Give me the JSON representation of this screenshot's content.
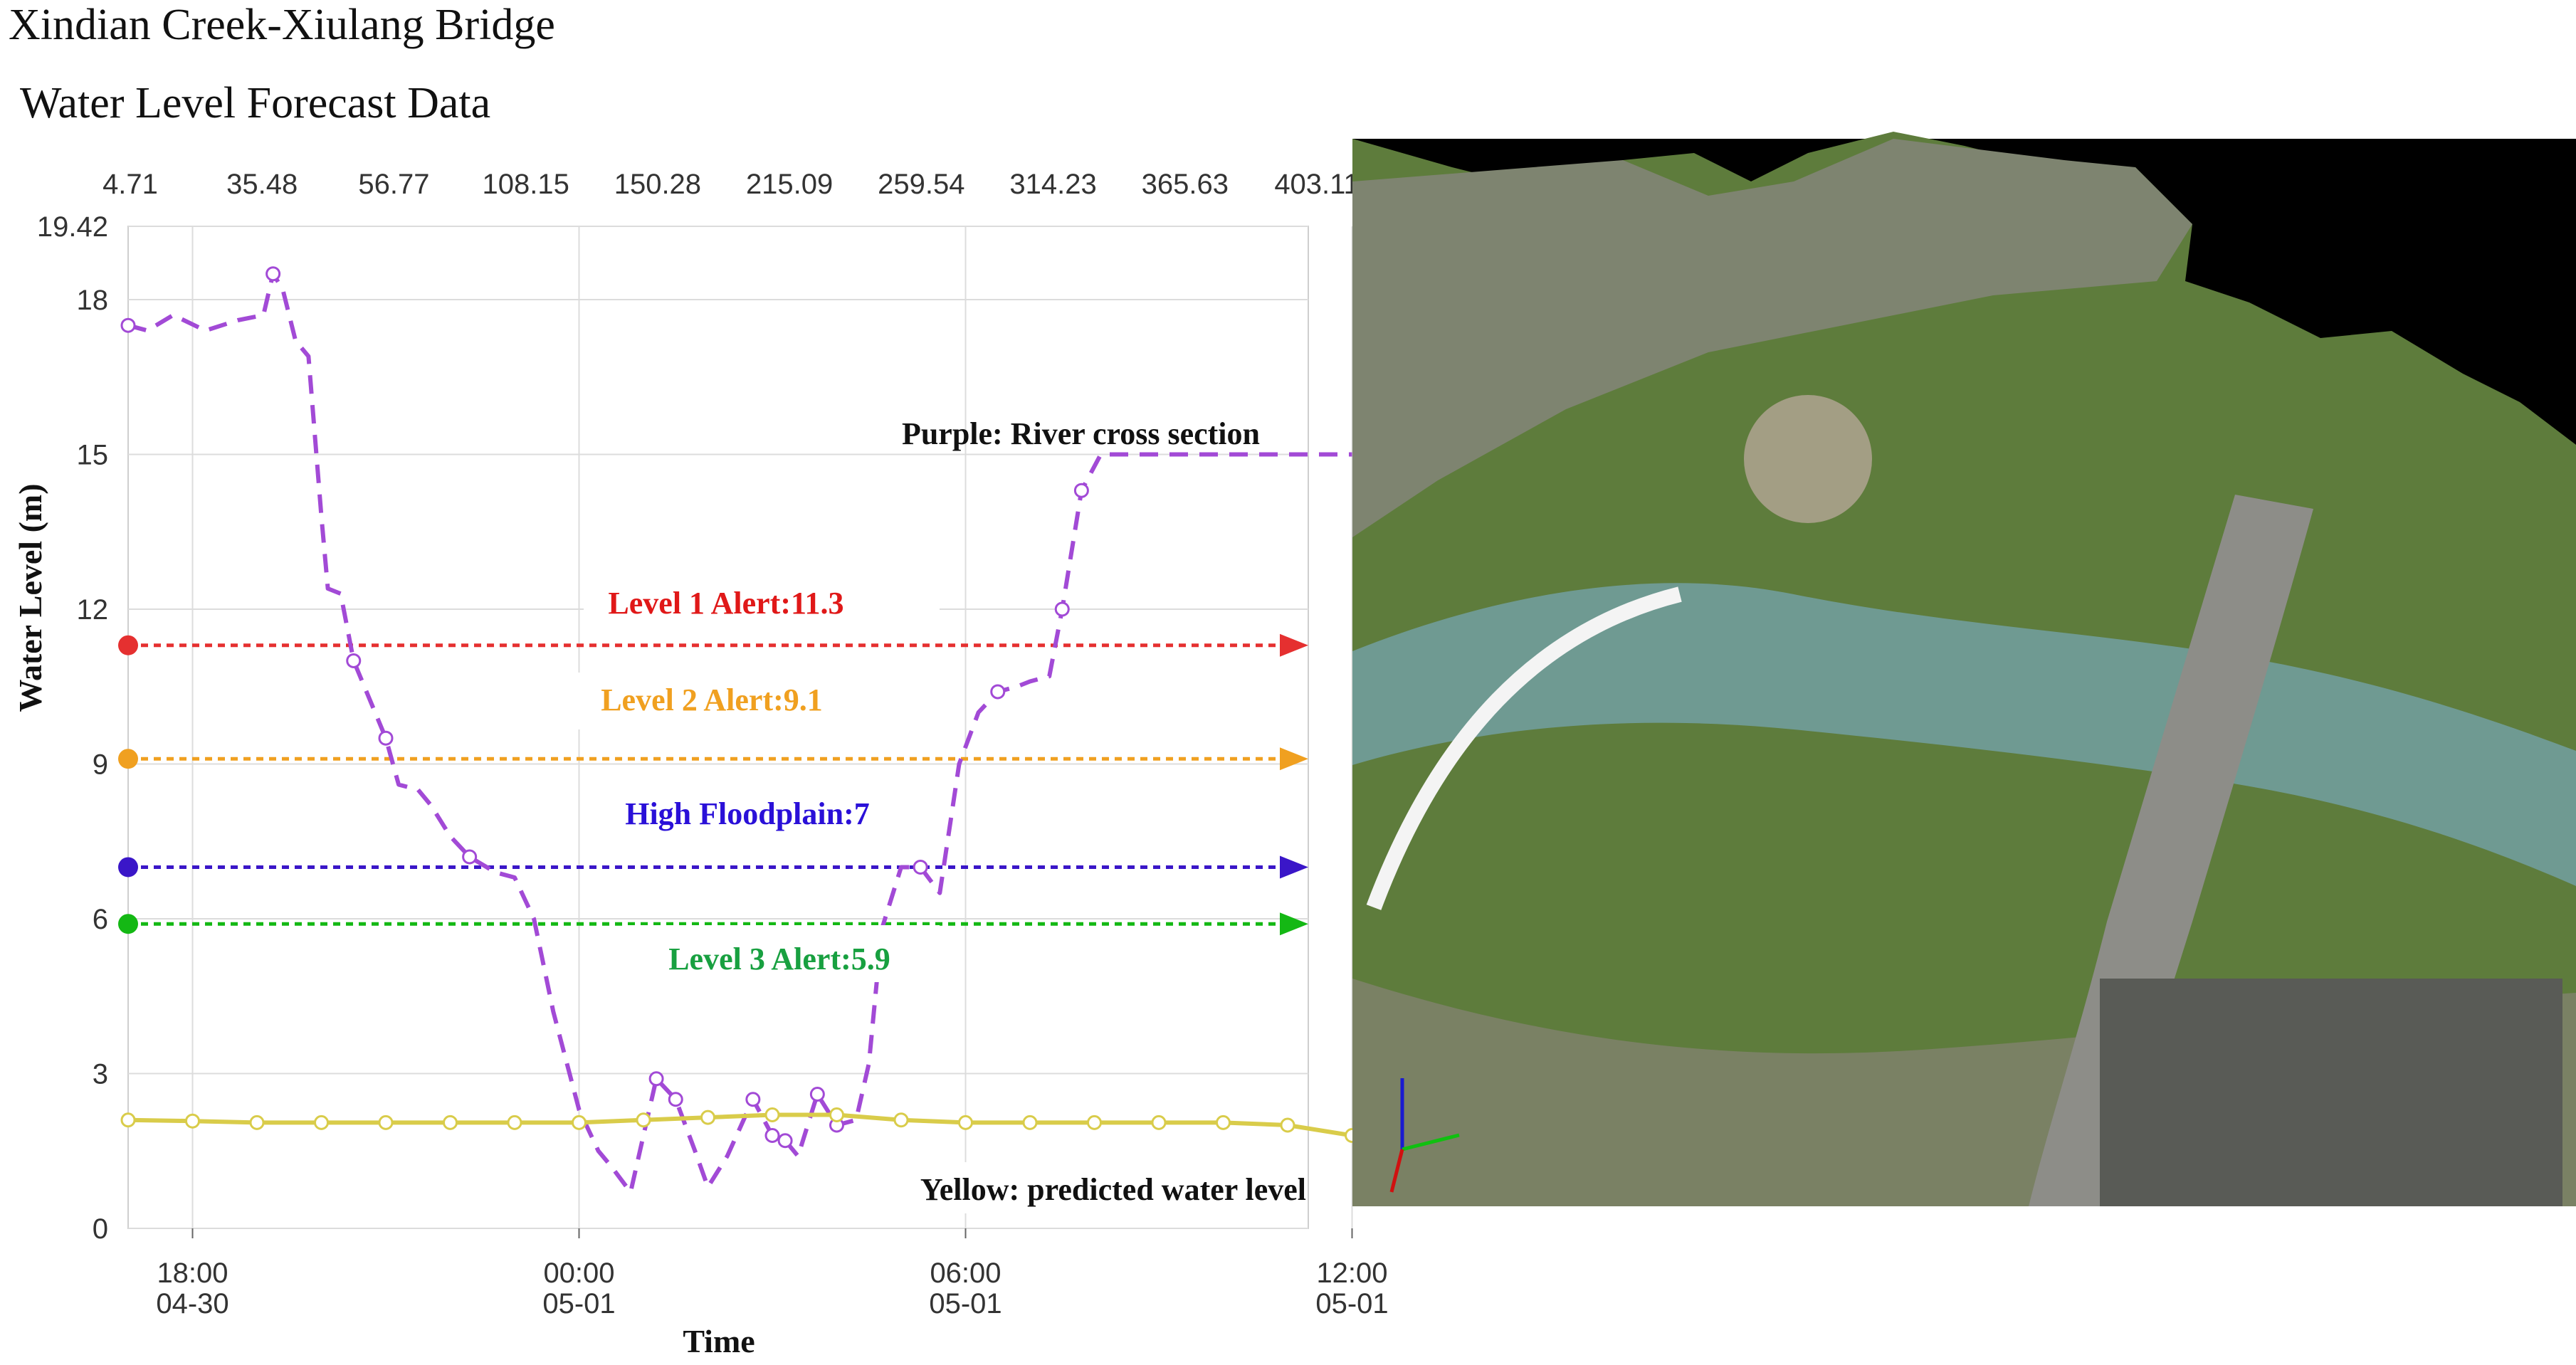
{
  "title": "Xindian Creek-Xiulang Bridge",
  "subtitle": "Water Level Forecast Data",
  "colors": {
    "purple": "#a24ad6",
    "yellow": "#d9cc4a",
    "level1": "#e53030",
    "level2": "#f0a020",
    "floodplain": "#3a16c8",
    "level3": "#14b814",
    "annotation_purple_text": "#111111",
    "annotation_level1_text": "#e01818",
    "annotation_level2_text": "#f0a020",
    "annotation_floodplain_text": "#2a10d8",
    "annotation_level3_text": "#18a040"
  },
  "chart_data": {
    "type": "line",
    "xlabel": "Time",
    "ylabel": "Water  Level (m)",
    "ylim": [
      0,
      19.42
    ],
    "yticks": [
      "0",
      "3",
      "6",
      "9",
      "12",
      "15",
      "18",
      "19.42"
    ],
    "xtick_labels": [
      {
        "time": "18:00",
        "date": "04-30"
      },
      {
        "time": "00:00",
        "date": "05-01"
      },
      {
        "time": "06:00",
        "date": "05-01"
      },
      {
        "time": "12:00",
        "date": "05-01"
      }
    ],
    "top_axis_labels": [
      "4.71",
      "35.48",
      "56.77",
      "108.15",
      "150.28",
      "215.09",
      "259.54",
      "314.23",
      "365.63",
      "403.11"
    ],
    "grid": true,
    "series": [
      {
        "name": "Purple: River cross section",
        "style": "dashed",
        "x_hours_from_1700": [
          0,
          0.3,
          0.7,
          1.2,
          1.7,
          2.1,
          2.25,
          2.4,
          2.6,
          2.8,
          3.0,
          3.1,
          3.3,
          3.5,
          3.7,
          4.0,
          4.2,
          4.5,
          4.7,
          5.0,
          5.3,
          5.7,
          6.0,
          6.3,
          6.6,
          7.0,
          7.3,
          7.5,
          7.8,
          8.2,
          8.5,
          8.8,
          9.0,
          9.3,
          9.7,
          10.0,
          10.2,
          10.4,
          10.7,
          11.0,
          11.3,
          11.5,
          11.7,
          12.0,
          12.3,
          12.6,
          12.9,
          13.2,
          13.5,
          13.8,
          14.0,
          14.3,
          14.5,
          14.8,
          15.1,
          15.4,
          15.7,
          16.0,
          16.3,
          16.6,
          17.0,
          17.3,
          17.6,
          17.9,
          18.1,
          18.3,
          18.5,
          18.7,
          18.9,
          19.0
        ],
        "values": [
          17.5,
          17.4,
          17.7,
          17.4,
          17.6,
          17.7,
          18.5,
          18.2,
          17.2,
          16.9,
          13.8,
          12.4,
          12.3,
          11.0,
          10.4,
          9.5,
          8.6,
          8.5,
          8.2,
          7.6,
          7.2,
          6.9,
          6.8,
          6.0,
          4.2,
          2.3,
          1.5,
          1.2,
          0.7,
          2.9,
          2.5,
          1.5,
          0.8,
          1.4,
          2.5,
          1.8,
          1.7,
          1.4,
          2.6,
          2.0,
          2.1,
          3.2,
          5.8,
          7.0,
          7.0,
          6.5,
          9.0,
          10.0,
          10.4,
          10.5,
          10.6,
          10.7,
          12.0,
          14.3,
          15.0,
          15.0,
          15.0,
          15.0,
          15.0,
          15.0,
          15.0,
          15.0,
          15.0,
          15.0,
          15.0,
          15.0,
          15.0,
          15.0,
          15.0,
          15.0
        ],
        "marked_indices": [
          0,
          6,
          13,
          15,
          20,
          29,
          30,
          34,
          35,
          36,
          38,
          39,
          44,
          48,
          52,
          53
        ]
      },
      {
        "name": "Yellow: predicted water level",
        "style": "solid",
        "x_hours_from_1700": [
          0,
          1,
          2,
          3,
          4,
          5,
          6,
          7,
          8,
          9,
          10,
          11,
          12,
          13,
          14,
          15,
          16,
          17,
          18,
          19
        ],
        "values": [
          2.1,
          2.08,
          2.05,
          2.05,
          2.05,
          2.05,
          2.05,
          2.05,
          2.1,
          2.15,
          2.2,
          2.2,
          2.1,
          2.05,
          2.05,
          2.05,
          2.05,
          2.05,
          2.0,
          1.8
        ]
      }
    ],
    "reference_lines": [
      {
        "label": "Level 1 Alert:11.3",
        "value": 11.3,
        "color_key": "level1"
      },
      {
        "label": "Level 2 Alert:9.1",
        "value": 9.1,
        "color_key": "level2"
      },
      {
        "label": "High Floodplain:7",
        "value": 7,
        "color_key": "floodplain"
      },
      {
        "label": "Level 3 Alert:5.9",
        "value": 5.9,
        "color_key": "level3"
      }
    ],
    "annotations": {
      "purple": "Purple: River cross section",
      "yellow": "Yellow: predicted water level"
    }
  },
  "aerial": {
    "icon": "aerial-3d-terrain-model"
  }
}
